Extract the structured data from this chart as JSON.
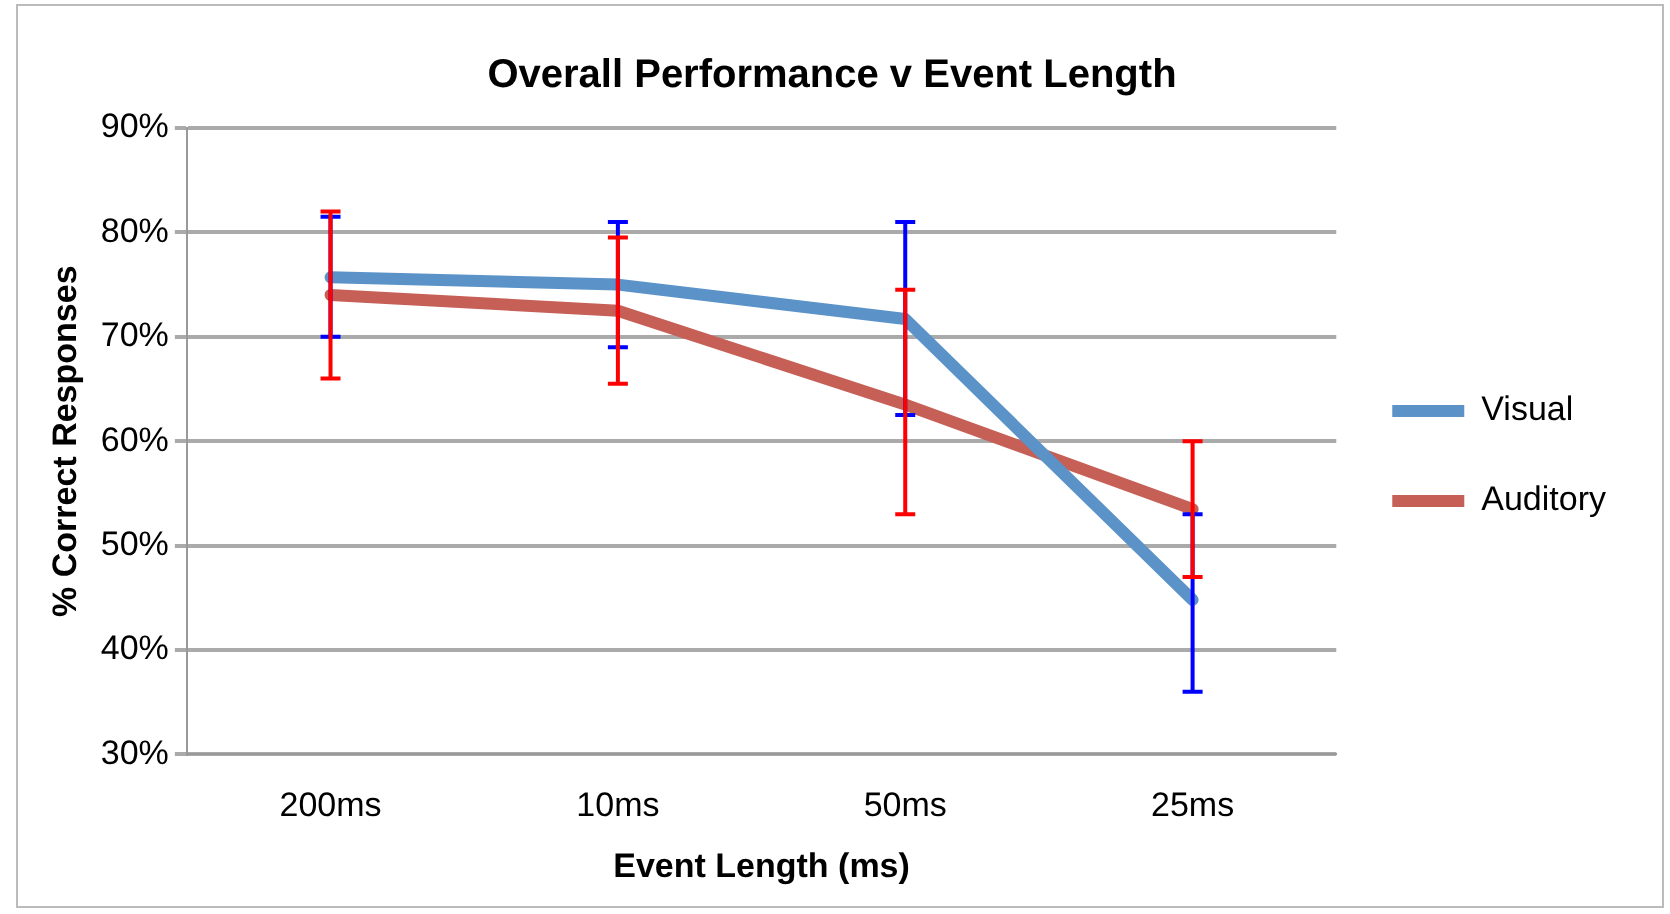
{
  "chart_data": {
    "type": "line",
    "title": "Overall Performance v Event Length",
    "xlabel": "Event Length (ms)",
    "ylabel": "% Correct Responses",
    "categories": [
      "200ms",
      "10ms",
      "50ms",
      "25ms"
    ],
    "series": [
      {
        "name": "Visual",
        "color": "#5b93c9",
        "values": [
          75.7,
          75,
          71.7,
          44.8
        ],
        "errors": [
          [
            70,
            81.5
          ],
          [
            69,
            81
          ],
          [
            62.5,
            81
          ],
          [
            36,
            53
          ]
        ]
      },
      {
        "name": "Auditory",
        "color": "#c65f55",
        "values": [
          74,
          72.5,
          63.5,
          53.5
        ],
        "errors": [
          [
            66,
            82
          ],
          [
            65.5,
            79.5
          ],
          [
            53,
            74.5
          ],
          [
            47,
            60
          ]
        ]
      }
    ],
    "ylim": [
      30,
      90
    ],
    "yticks": [
      {
        "value": 30,
        "label": "30%"
      },
      {
        "value": 40,
        "label": "40%"
      },
      {
        "value": 50,
        "label": "50%"
      },
      {
        "value": 60,
        "label": "60%"
      },
      {
        "value": 70,
        "label": "70%"
      },
      {
        "value": 80,
        "label": "80%"
      },
      {
        "value": 90,
        "label": "90%"
      }
    ],
    "grid": "y",
    "legend": "right",
    "marker": "none",
    "line_style": "solid"
  }
}
